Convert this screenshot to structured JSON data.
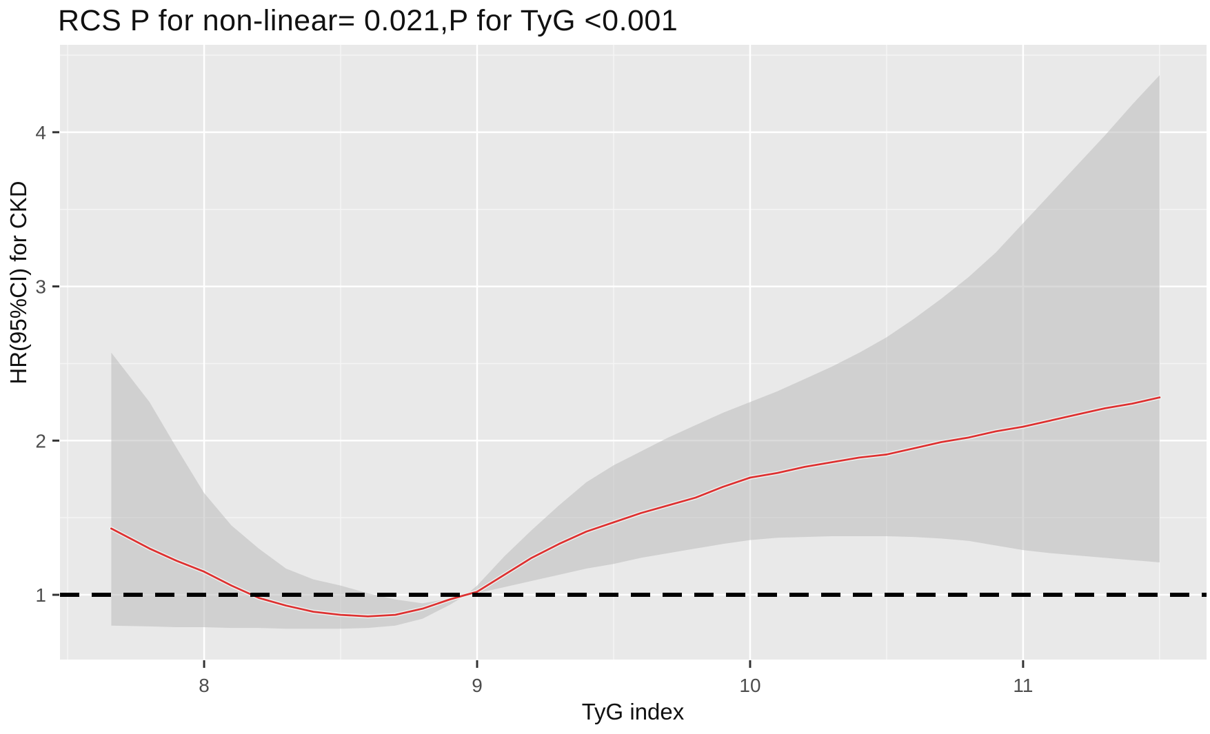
{
  "figure": {
    "title": "RCS P for non-linear= 0.021,P for TyG <0.001",
    "x_axis_label": "TyG index",
    "y_axis_label": "HR(95%CI) for CKD"
  },
  "chart_data": {
    "type": "line",
    "title": "RCS P for non-linear= 0.021,P for TyG <0.001",
    "xlabel": "TyG index",
    "ylabel": "HR(95%CI) for CKD",
    "subtitle": "",
    "p_for_nonlinear": "0.021",
    "p_for_TyG": "<0.001",
    "xlim": [
      7.472,
      11.672
    ],
    "ylim": [
      0.58,
      4.567
    ],
    "x_ticks": [
      8,
      9,
      10,
      11
    ],
    "y_ticks": [
      1,
      2,
      3,
      4
    ],
    "x_minor_ticks": [
      7.5,
      8.5,
      9.5,
      10.5,
      11.5
    ],
    "y_minor_ticks": [
      1.5,
      2.5,
      3.5,
      4.5
    ],
    "grid": true,
    "legend_position": "none",
    "reference_line": {
      "y": 1,
      "style": "dashed"
    },
    "x": [
      7.66,
      7.8,
      7.9,
      8.0,
      8.1,
      8.2,
      8.3,
      8.4,
      8.5,
      8.6,
      8.7,
      8.8,
      8.9,
      8.96,
      9.0,
      9.1,
      9.2,
      9.3,
      9.4,
      9.5,
      9.6,
      9.7,
      9.8,
      9.9,
      10.0,
      10.1,
      10.2,
      10.3,
      10.4,
      10.5,
      10.6,
      10.7,
      10.8,
      10.9,
      11.0,
      11.1,
      11.2,
      11.3,
      11.4,
      11.5
    ],
    "series": [
      {
        "name": "HR estimate",
        "values": [
          1.43,
          1.3,
          1.22,
          1.15,
          1.06,
          0.98,
          0.93,
          0.89,
          0.87,
          0.86,
          0.87,
          0.91,
          0.97,
          1.0,
          1.02,
          1.13,
          1.24,
          1.33,
          1.41,
          1.47,
          1.53,
          1.58,
          1.63,
          1.7,
          1.76,
          1.79,
          1.83,
          1.86,
          1.89,
          1.91,
          1.95,
          1.99,
          2.02,
          2.06,
          2.09,
          2.13,
          2.17,
          2.21,
          2.24,
          2.28
        ]
      },
      {
        "name": "95% CI upper",
        "values": [
          2.57,
          2.25,
          1.95,
          1.66,
          1.45,
          1.3,
          1.17,
          1.1,
          1.06,
          1.01,
          0.97,
          0.945,
          0.975,
          1.0,
          1.06,
          1.25,
          1.42,
          1.58,
          1.73,
          1.84,
          1.93,
          2.02,
          2.1,
          2.18,
          2.25,
          2.32,
          2.4,
          2.48,
          2.57,
          2.67,
          2.79,
          2.92,
          3.06,
          3.22,
          3.41,
          3.6,
          3.79,
          3.98,
          4.18,
          4.37
        ]
      },
      {
        "name": "95% CI lower",
        "values": [
          0.8,
          0.795,
          0.79,
          0.79,
          0.785,
          0.785,
          0.78,
          0.78,
          0.78,
          0.785,
          0.8,
          0.845,
          0.935,
          1.0,
          1.01,
          1.05,
          1.09,
          1.13,
          1.17,
          1.2,
          1.24,
          1.27,
          1.3,
          1.33,
          1.355,
          1.37,
          1.375,
          1.38,
          1.38,
          1.38,
          1.375,
          1.365,
          1.35,
          1.32,
          1.29,
          1.27,
          1.255,
          1.24,
          1.225,
          1.21
        ]
      }
    ],
    "colors": {
      "panel_background": "#e9e9e9",
      "ci_band": "#bcbcbc",
      "hr_line": "#dd3232",
      "hr_line_halo": "#f0f5f3",
      "grid_major": "#ffffff",
      "grid_minor": "#f5f5f5",
      "reference_line": "#000000",
      "tick_mark": "#333333",
      "tick_text": "#4d4d4d",
      "text": "#111111"
    }
  }
}
